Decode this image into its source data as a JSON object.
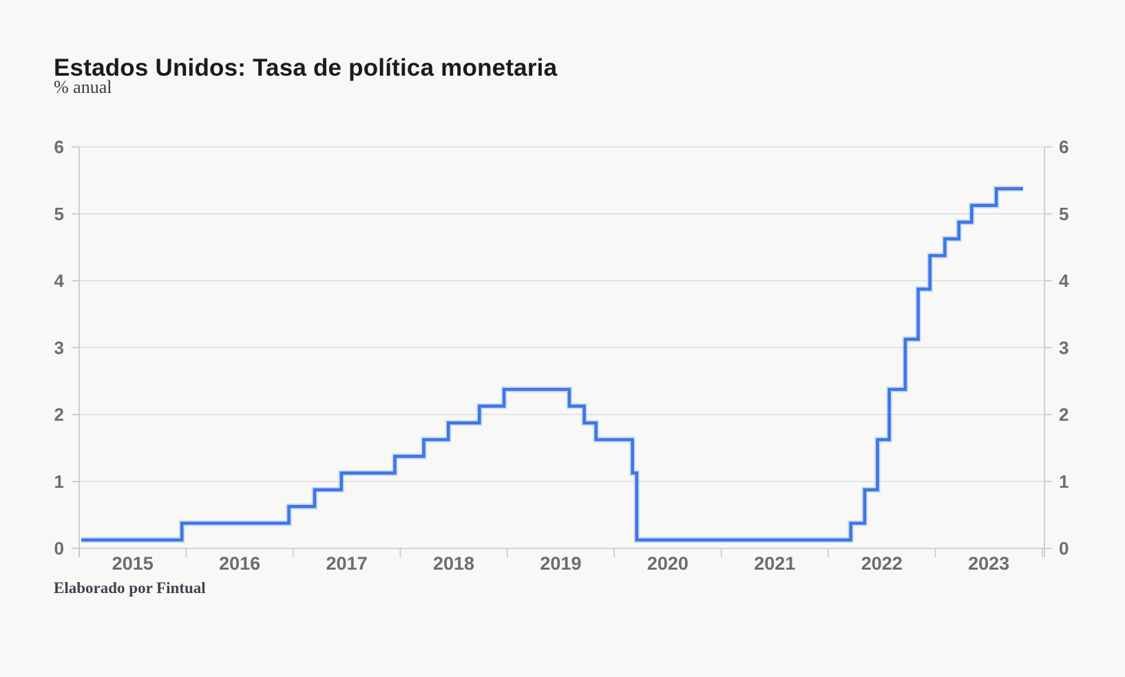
{
  "header": {
    "title": "Estados Unidos: Tasa de política monetaria",
    "subtitle": "% anual"
  },
  "footer": {
    "source": "Elaborado por Fintual"
  },
  "chart_data": {
    "type": "line",
    "line_style": "step-after",
    "title": "Estados Unidos: Tasa de política monetaria",
    "ylabel": "% anual",
    "xlabel": "",
    "xlim": [
      2015,
      2024.02
    ],
    "ylim": [
      0,
      6
    ],
    "y_ticks": [
      0,
      1,
      2,
      3,
      4,
      5,
      6
    ],
    "y_axis_sides": [
      "left",
      "right"
    ],
    "x_year_labels": [
      "2015",
      "2016",
      "2017",
      "2018",
      "2019",
      "2020",
      "2021",
      "2022",
      "2023"
    ],
    "x_boundary_ticks": [
      2015,
      2016,
      2017,
      2018,
      2019,
      2020,
      2021,
      2022,
      2023,
      2024
    ],
    "grid": "horizontal",
    "legend_position": "none",
    "line_color": "#3c77e6",
    "line_halo_color": "#9bb9f0",
    "series": [
      {
        "name": "Tasa de política monetaria EE.UU. (% anual)",
        "points": [
          [
            2015.02,
            0.125
          ],
          [
            2015.96,
            0.375
          ],
          [
            2016.96,
            0.625
          ],
          [
            2017.2,
            0.875
          ],
          [
            2017.45,
            1.125
          ],
          [
            2017.95,
            1.375
          ],
          [
            2018.22,
            1.625
          ],
          [
            2018.45,
            1.875
          ],
          [
            2018.74,
            2.125
          ],
          [
            2018.97,
            2.375
          ],
          [
            2019.58,
            2.125
          ],
          [
            2019.72,
            1.875
          ],
          [
            2019.83,
            1.625
          ],
          [
            2020.17,
            1.125
          ],
          [
            2020.21,
            0.125
          ],
          [
            2022.21,
            0.375
          ],
          [
            2022.34,
            0.875
          ],
          [
            2022.46,
            1.625
          ],
          [
            2022.57,
            2.375
          ],
          [
            2022.72,
            3.125
          ],
          [
            2022.84,
            3.875
          ],
          [
            2022.95,
            4.375
          ],
          [
            2023.09,
            4.625
          ],
          [
            2023.22,
            4.875
          ],
          [
            2023.34,
            5.125
          ],
          [
            2023.57,
            5.375
          ],
          [
            2023.82,
            5.375
          ]
        ]
      }
    ]
  },
  "colors": {
    "background": "#f8f8f7",
    "title_text": "#1a1a21",
    "subtitle_text": "#3b3b3b",
    "tick_text": "#696d75",
    "gridline": "#dcdcdc",
    "axis_line": "#c7c7c7",
    "line": "#3c77e6"
  }
}
